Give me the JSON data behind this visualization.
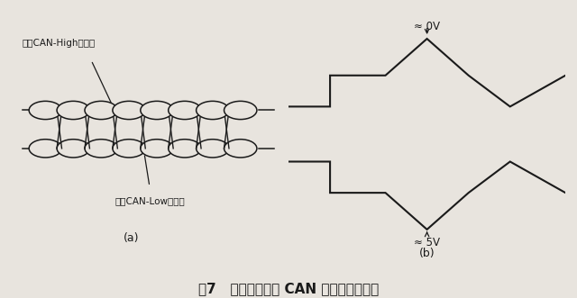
{
  "title": "图7   缠绕在一起的 CAN 总线结构示意图",
  "label_a": "(a)",
  "label_b": "(b)",
  "label_high": "高位CAN-High数据线",
  "label_low": "低位CAN-Low数据线",
  "label_0v": "≈ 0V",
  "label_5v": "≈ 5V",
  "bg_color": "#e8e4de",
  "line_color": "#1a1a1a",
  "fig_width": 6.4,
  "fig_height": 3.31
}
